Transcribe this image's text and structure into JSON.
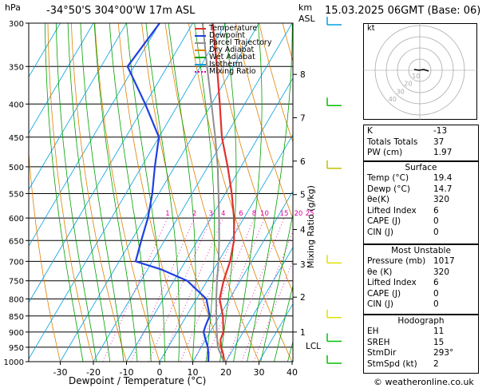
{
  "header": {
    "hpa_label": "hPa",
    "location": "-34°50'S  304°00'W  17m  ASL",
    "km_label": "km",
    "asl_label": "ASL",
    "datetime": "15.03.2025  06GMT  (Base: 06)"
  },
  "legend": [
    {
      "label": "Temperature",
      "color": "#e03030"
    },
    {
      "label": "Dewpoint",
      "color": "#2040e0"
    },
    {
      "label": "Parcel Trajectory",
      "color": "#909090"
    },
    {
      "label": "Dry Adiabat",
      "color": "#e08000"
    },
    {
      "label": "Wet Adiabat",
      "color": "#00a000"
    },
    {
      "label": "Isotherm",
      "color": "#00a0e0"
    },
    {
      "label": "Mixing Ratio",
      "color": "#e000a0"
    }
  ],
  "axes": {
    "xlabel": "Dewpoint / Temperature (°C)",
    "y2label": "Mixing Ratio (g/kg)",
    "lcl_label": "LCL"
  },
  "chart_data": {
    "type": "line",
    "pressure_ticks": [
      300,
      350,
      400,
      450,
      500,
      550,
      600,
      650,
      700,
      750,
      800,
      850,
      900,
      950,
      1000
    ],
    "temp_ticks": [
      -30,
      -20,
      -10,
      0,
      10,
      20,
      30,
      40
    ],
    "km_ticks": [
      {
        "label": "1",
        "p": 900
      },
      {
        "label": "2",
        "p": 795
      },
      {
        "label": "3",
        "p": 707
      },
      {
        "label": "4",
        "p": 625
      },
      {
        "label": "5",
        "p": 552
      },
      {
        "label": "6",
        "p": 490
      },
      {
        "label": "7",
        "p": 420
      },
      {
        "label": "8",
        "p": 360
      }
    ],
    "mixing_ratio_labels": [
      "1",
      "2",
      "3",
      "4",
      "6",
      "8",
      "10",
      "15",
      "20",
      "25"
    ],
    "mixing_ratio_values": [
      1,
      2,
      3,
      4,
      6,
      8,
      10,
      15,
      20,
      25
    ],
    "xlim": [
      -40,
      40
    ],
    "ylim": [
      1000,
      300
    ],
    "skew_per_decade_note": "",
    "series": [
      {
        "name": "Temperature",
        "color": "#e03030",
        "p": [
          1000,
          975,
          950,
          925,
          900,
          850,
          800,
          750,
          700,
          650,
          600,
          550,
          500,
          450,
          400,
          350,
          300
        ],
        "t": [
          19.4,
          18.0,
          16.0,
          14.5,
          14.0,
          11.0,
          7.0,
          5.0,
          3.5,
          1.0,
          -3.0,
          -8.0,
          -14.0,
          -21.0,
          -27.5,
          -35.0,
          -44.0
        ]
      },
      {
        "name": "Dewpoint",
        "color": "#2040e0",
        "p": [
          1000,
          975,
          950,
          925,
          900,
          880,
          850,
          800,
          750,
          720,
          700,
          650,
          600,
          550,
          500,
          450,
          400,
          350,
          300
        ],
        "t": [
          14.7,
          13.5,
          12.0,
          10.0,
          8.0,
          7.5,
          7.0,
          3.0,
          -6.0,
          -16.0,
          -25.0,
          -27.0,
          -29.0,
          -32.0,
          -36.0,
          -40.0,
          -50.0,
          -62.0,
          -60.0
        ]
      },
      {
        "name": "Parcel Trajectory",
        "color": "#909090",
        "p": [
          1000,
          950,
          900,
          850,
          800,
          750,
          700,
          650,
          600,
          550,
          500,
          450,
          400,
          350,
          300
        ],
        "t": [
          19.4,
          15.0,
          12.0,
          9.0,
          6.0,
          3.0,
          0.0,
          -3.5,
          -7.5,
          -12.0,
          -17.0,
          -23.0,
          -30.0,
          -38.0,
          -47.0
        ]
      }
    ]
  },
  "hodograph": {
    "label": "kt",
    "ring_labels": [
      "10",
      "20",
      "30",
      "40"
    ]
  },
  "indices": [
    {
      "label": "K",
      "value": "-13"
    },
    {
      "label": "Totals Totals",
      "value": "37"
    },
    {
      "label": "PW (cm)",
      "value": "1.97"
    }
  ],
  "surface": {
    "title": "Surface",
    "rows": [
      {
        "label": "Temp (°C)",
        "value": "19.4"
      },
      {
        "label": "Dewp (°C)",
        "value": "14.7"
      },
      {
        "label": "θe(K)",
        "value": "320"
      },
      {
        "label": "Lifted Index",
        "value": "6"
      },
      {
        "label": "CAPE (J)",
        "value": "0"
      },
      {
        "label": "CIN (J)",
        "value": "0"
      }
    ]
  },
  "most_unstable": {
    "title": "Most Unstable",
    "rows": [
      {
        "label": "Pressure (mb)",
        "value": "1017"
      },
      {
        "label": "θe (K)",
        "value": "320"
      },
      {
        "label": "Lifted Index",
        "value": "6"
      },
      {
        "label": "CAPE (J)",
        "value": "0"
      },
      {
        "label": "CIN (J)",
        "value": "0"
      }
    ]
  },
  "hodo_table": {
    "title": "Hodograph",
    "rows": [
      {
        "label": "EH",
        "value": "11"
      },
      {
        "label": "SREH",
        "value": "15"
      },
      {
        "label": "StmDir",
        "value": "293°"
      },
      {
        "label": "StmSpd (kt)",
        "value": "2"
      }
    ]
  },
  "footer": {
    "copyright": "© weatheronline.co.uk"
  }
}
